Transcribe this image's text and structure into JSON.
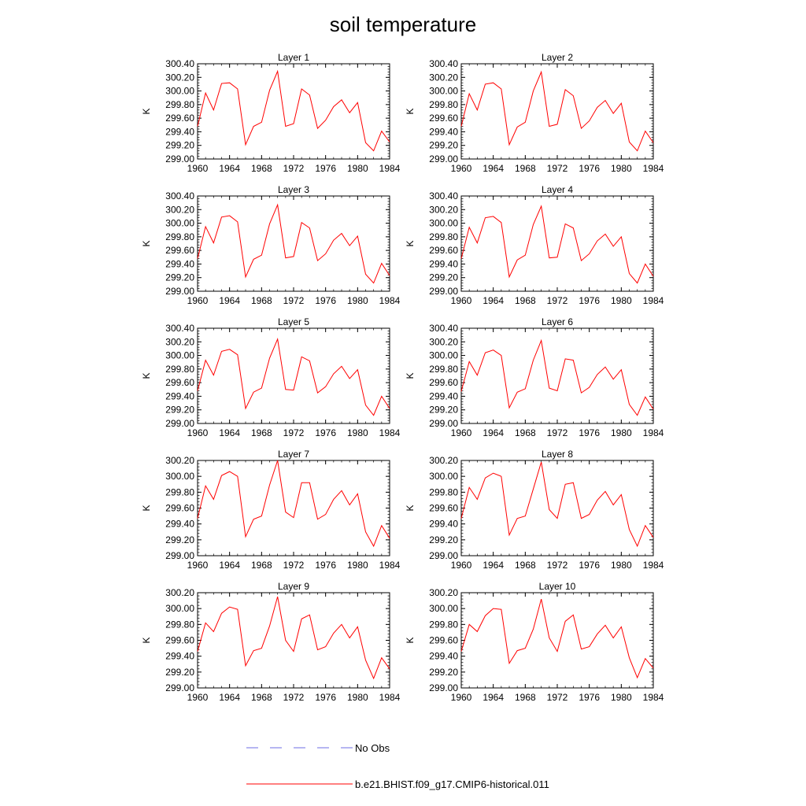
{
  "title": "soil temperature",
  "colors": {
    "model": "#ff0000",
    "obs": "#6e6ee6"
  },
  "legend": [
    {
      "label": "No Obs",
      "style": "dashed",
      "color": "#6e6ee6"
    },
    {
      "label": "b.e21.BHIST.f09_g17.CMIP6-historical.011",
      "style": "solid",
      "color": "#ff0000"
    }
  ],
  "chart_data": [
    {
      "type": "line",
      "title": "Layer 1",
      "ylabel": "K",
      "xlim": [
        1960,
        1984
      ],
      "ylim": [
        299.0,
        300.4
      ],
      "xticks": [
        "1960",
        "1964",
        "1968",
        "1972",
        "1976",
        "1980",
        "1984"
      ],
      "yticks": [
        "299.00",
        "299.20",
        "299.40",
        "299.60",
        "299.80",
        "300.00",
        "300.20",
        "300.40"
      ],
      "x": [
        1960,
        1961,
        1962,
        1963,
        1964,
        1965,
        1966,
        1967,
        1968,
        1969,
        1970,
        1971,
        1972,
        1973,
        1974,
        1975,
        1976,
        1977,
        1978,
        1979,
        1980,
        1981,
        1982,
        1983,
        1984
      ],
      "series": [
        {
          "name": "b.e21.BHIST.f09_g17.CMIP6-historical.011",
          "values": [
            299.48,
            299.97,
            299.72,
            300.11,
            300.12,
            300.03,
            299.21,
            299.48,
            299.54,
            300.01,
            300.29,
            299.48,
            299.52,
            300.03,
            299.94,
            299.45,
            299.57,
            299.77,
            299.87,
            299.68,
            299.83,
            299.24,
            299.12,
            299.41,
            299.25
          ]
        }
      ]
    },
    {
      "type": "line",
      "title": "Layer 2",
      "ylabel": "K",
      "xlim": [
        1960,
        1984
      ],
      "ylim": [
        299.0,
        300.4
      ],
      "xticks": [
        "1960",
        "1964",
        "1968",
        "1972",
        "1976",
        "1980",
        "1984"
      ],
      "yticks": [
        "299.00",
        "299.20",
        "299.40",
        "299.60",
        "299.80",
        "300.00",
        "300.20",
        "300.40"
      ],
      "x": [
        1960,
        1961,
        1962,
        1963,
        1964,
        1965,
        1966,
        1967,
        1968,
        1969,
        1970,
        1971,
        1972,
        1973,
        1974,
        1975,
        1976,
        1977,
        1978,
        1979,
        1980,
        1981,
        1982,
        1983,
        1984
      ],
      "series": [
        {
          "name": "b.e21.BHIST.f09_g17.CMIP6-historical.011",
          "values": [
            299.48,
            299.96,
            299.72,
            300.1,
            300.12,
            300.03,
            299.21,
            299.47,
            299.54,
            300.0,
            300.28,
            299.48,
            299.51,
            300.02,
            299.93,
            299.45,
            299.56,
            299.76,
            299.86,
            299.67,
            299.82,
            299.25,
            299.12,
            299.41,
            299.24
          ]
        }
      ]
    },
    {
      "type": "line",
      "title": "Layer 3",
      "ylabel": "K",
      "xlim": [
        1960,
        1984
      ],
      "ylim": [
        299.0,
        300.4
      ],
      "xticks": [
        "1960",
        "1964",
        "1968",
        "1972",
        "1976",
        "1980",
        "1984"
      ],
      "yticks": [
        "299.00",
        "299.20",
        "299.40",
        "299.60",
        "299.80",
        "300.00",
        "300.20",
        "300.40"
      ],
      "x": [
        1960,
        1961,
        1962,
        1963,
        1964,
        1965,
        1966,
        1967,
        1968,
        1969,
        1970,
        1971,
        1972,
        1973,
        1974,
        1975,
        1976,
        1977,
        1978,
        1979,
        1980,
        1981,
        1982,
        1983,
        1984
      ],
      "series": [
        {
          "name": "b.e21.BHIST.f09_g17.CMIP6-historical.011",
          "values": [
            299.48,
            299.95,
            299.71,
            300.09,
            300.11,
            300.02,
            299.21,
            299.47,
            299.53,
            299.99,
            300.27,
            299.49,
            299.51,
            300.01,
            299.93,
            299.45,
            299.55,
            299.75,
            299.85,
            299.67,
            299.81,
            299.25,
            299.12,
            299.41,
            299.23
          ]
        }
      ]
    },
    {
      "type": "line",
      "title": "Layer 4",
      "ylabel": "K",
      "xlim": [
        1960,
        1984
      ],
      "ylim": [
        299.0,
        300.4
      ],
      "xticks": [
        "1960",
        "1964",
        "1968",
        "1972",
        "1976",
        "1980",
        "1984"
      ],
      "yticks": [
        "299.00",
        "299.20",
        "299.40",
        "299.60",
        "299.80",
        "300.00",
        "300.20",
        "300.40"
      ],
      "x": [
        1960,
        1961,
        1962,
        1963,
        1964,
        1965,
        1966,
        1967,
        1968,
        1969,
        1970,
        1971,
        1972,
        1973,
        1974,
        1975,
        1976,
        1977,
        1978,
        1979,
        1980,
        1981,
        1982,
        1983,
        1984
      ],
      "series": [
        {
          "name": "b.e21.BHIST.f09_g17.CMIP6-historical.011",
          "values": [
            299.48,
            299.94,
            299.71,
            300.08,
            300.1,
            300.01,
            299.21,
            299.46,
            299.53,
            299.98,
            300.25,
            299.49,
            299.5,
            299.99,
            299.93,
            299.45,
            299.55,
            299.74,
            299.84,
            299.66,
            299.8,
            299.26,
            299.12,
            299.4,
            299.22
          ]
        }
      ]
    },
    {
      "type": "line",
      "title": "Layer 5",
      "ylabel": "K",
      "xlim": [
        1960,
        1984
      ],
      "ylim": [
        299.0,
        300.4
      ],
      "xticks": [
        "1960",
        "1964",
        "1968",
        "1972",
        "1976",
        "1980",
        "1984"
      ],
      "yticks": [
        "299.00",
        "299.20",
        "299.40",
        "299.60",
        "299.80",
        "300.00",
        "300.20",
        "300.40"
      ],
      "x": [
        1960,
        1961,
        1962,
        1963,
        1964,
        1965,
        1966,
        1967,
        1968,
        1969,
        1970,
        1971,
        1972,
        1973,
        1974,
        1975,
        1976,
        1977,
        1978,
        1979,
        1980,
        1981,
        1982,
        1983,
        1984
      ],
      "series": [
        {
          "name": "b.e21.BHIST.f09_g17.CMIP6-historical.011",
          "values": [
            299.48,
            299.93,
            299.71,
            300.06,
            300.09,
            300.01,
            299.22,
            299.46,
            299.52,
            299.96,
            300.24,
            299.5,
            299.49,
            299.98,
            299.92,
            299.45,
            299.54,
            299.73,
            299.84,
            299.66,
            299.79,
            299.27,
            299.12,
            299.4,
            299.22
          ]
        }
      ]
    },
    {
      "type": "line",
      "title": "Layer 6",
      "ylabel": "K",
      "xlim": [
        1960,
        1984
      ],
      "ylim": [
        299.0,
        300.4
      ],
      "xticks": [
        "1960",
        "1964",
        "1968",
        "1972",
        "1976",
        "1980",
        "1984"
      ],
      "yticks": [
        "299.00",
        "299.20",
        "299.40",
        "299.60",
        "299.80",
        "300.00",
        "300.20",
        "300.40"
      ],
      "x": [
        1960,
        1961,
        1962,
        1963,
        1964,
        1965,
        1966,
        1967,
        1968,
        1969,
        1970,
        1971,
        1972,
        1973,
        1974,
        1975,
        1976,
        1977,
        1978,
        1979,
        1980,
        1981,
        1982,
        1983,
        1984
      ],
      "series": [
        {
          "name": "b.e21.BHIST.f09_g17.CMIP6-historical.011",
          "values": [
            299.47,
            299.91,
            299.71,
            300.04,
            300.08,
            300.0,
            299.23,
            299.46,
            299.51,
            299.93,
            300.22,
            299.52,
            299.48,
            299.95,
            299.93,
            299.45,
            299.53,
            299.72,
            299.83,
            299.65,
            299.79,
            299.28,
            299.12,
            299.39,
            299.21
          ]
        }
      ]
    },
    {
      "type": "line",
      "title": "Layer 7",
      "ylabel": "K",
      "xlim": [
        1960,
        1984
      ],
      "ylim": [
        299.0,
        300.2
      ],
      "xticks": [
        "1960",
        "1964",
        "1968",
        "1972",
        "1976",
        "1980",
        "1984"
      ],
      "yticks": [
        "299.00",
        "299.20",
        "299.40",
        "299.60",
        "299.80",
        "300.00",
        "300.20"
      ],
      "x": [
        1960,
        1961,
        1962,
        1963,
        1964,
        1965,
        1966,
        1967,
        1968,
        1969,
        1970,
        1971,
        1972,
        1973,
        1974,
        1975,
        1976,
        1977,
        1978,
        1979,
        1980,
        1981,
        1982,
        1983,
        1984
      ],
      "series": [
        {
          "name": "b.e21.BHIST.f09_g17.CMIP6-historical.011",
          "values": [
            299.47,
            299.88,
            299.71,
            300.01,
            300.06,
            300.0,
            299.24,
            299.46,
            299.5,
            299.89,
            300.2,
            299.55,
            299.48,
            299.92,
            299.92,
            299.46,
            299.52,
            299.71,
            299.82,
            299.64,
            299.78,
            299.3,
            299.12,
            299.38,
            299.22
          ]
        }
      ]
    },
    {
      "type": "line",
      "title": "Layer 8",
      "ylabel": "K",
      "xlim": [
        1960,
        1984
      ],
      "ylim": [
        299.0,
        300.2
      ],
      "xticks": [
        "1960",
        "1964",
        "1968",
        "1972",
        "1976",
        "1980",
        "1984"
      ],
      "yticks": [
        "299.00",
        "299.20",
        "299.40",
        "299.60",
        "299.80",
        "300.00",
        "300.20"
      ],
      "x": [
        1960,
        1961,
        1962,
        1963,
        1964,
        1965,
        1966,
        1967,
        1968,
        1969,
        1970,
        1971,
        1972,
        1973,
        1974,
        1975,
        1976,
        1977,
        1978,
        1979,
        1980,
        1981,
        1982,
        1983,
        1984
      ],
      "series": [
        {
          "name": "b.e21.BHIST.f09_g17.CMIP6-historical.011",
          "values": [
            299.47,
            299.86,
            299.71,
            299.98,
            300.04,
            300.0,
            299.26,
            299.47,
            299.5,
            299.84,
            300.18,
            299.58,
            299.47,
            299.9,
            299.92,
            299.47,
            299.52,
            299.7,
            299.81,
            299.64,
            299.77,
            299.33,
            299.12,
            299.38,
            299.23
          ]
        }
      ]
    },
    {
      "type": "line",
      "title": "Layer 9",
      "ylabel": "K",
      "xlim": [
        1960,
        1984
      ],
      "ylim": [
        299.0,
        300.2
      ],
      "xticks": [
        "1960",
        "1964",
        "1968",
        "1972",
        "1976",
        "1980",
        "1984"
      ],
      "yticks": [
        "299.00",
        "299.20",
        "299.40",
        "299.60",
        "299.80",
        "300.00",
        "300.20"
      ],
      "x": [
        1960,
        1961,
        1962,
        1963,
        1964,
        1965,
        1966,
        1967,
        1968,
        1969,
        1970,
        1971,
        1972,
        1973,
        1974,
        1975,
        1976,
        1977,
        1978,
        1979,
        1980,
        1981,
        1982,
        1983,
        1984
      ],
      "series": [
        {
          "name": "b.e21.BHIST.f09_g17.CMIP6-historical.011",
          "values": [
            299.46,
            299.82,
            299.71,
            299.94,
            300.02,
            299.99,
            299.28,
            299.47,
            299.5,
            299.78,
            300.15,
            299.6,
            299.46,
            299.87,
            299.92,
            299.48,
            299.52,
            299.69,
            299.8,
            299.63,
            299.77,
            299.35,
            299.12,
            299.38,
            299.24
          ]
        }
      ]
    },
    {
      "type": "line",
      "title": "Layer 10",
      "ylabel": "K",
      "xlim": [
        1960,
        1984
      ],
      "ylim": [
        299.0,
        300.2
      ],
      "xticks": [
        "1960",
        "1964",
        "1968",
        "1972",
        "1976",
        "1980",
        "1984"
      ],
      "yticks": [
        "299.00",
        "299.20",
        "299.40",
        "299.60",
        "299.80",
        "300.00",
        "300.20"
      ],
      "x": [
        1960,
        1961,
        1962,
        1963,
        1964,
        1965,
        1966,
        1967,
        1968,
        1969,
        1970,
        1971,
        1972,
        1973,
        1974,
        1975,
        1976,
        1977,
        1978,
        1979,
        1980,
        1981,
        1982,
        1983,
        1984
      ],
      "series": [
        {
          "name": "b.e21.BHIST.f09_g17.CMIP6-historical.011",
          "values": [
            299.46,
            299.8,
            299.71,
            299.91,
            300.0,
            299.99,
            299.31,
            299.47,
            299.5,
            299.74,
            300.12,
            299.63,
            299.46,
            299.84,
            299.92,
            299.49,
            299.52,
            299.68,
            299.79,
            299.63,
            299.77,
            299.38,
            299.13,
            299.37,
            299.25
          ]
        }
      ]
    }
  ]
}
